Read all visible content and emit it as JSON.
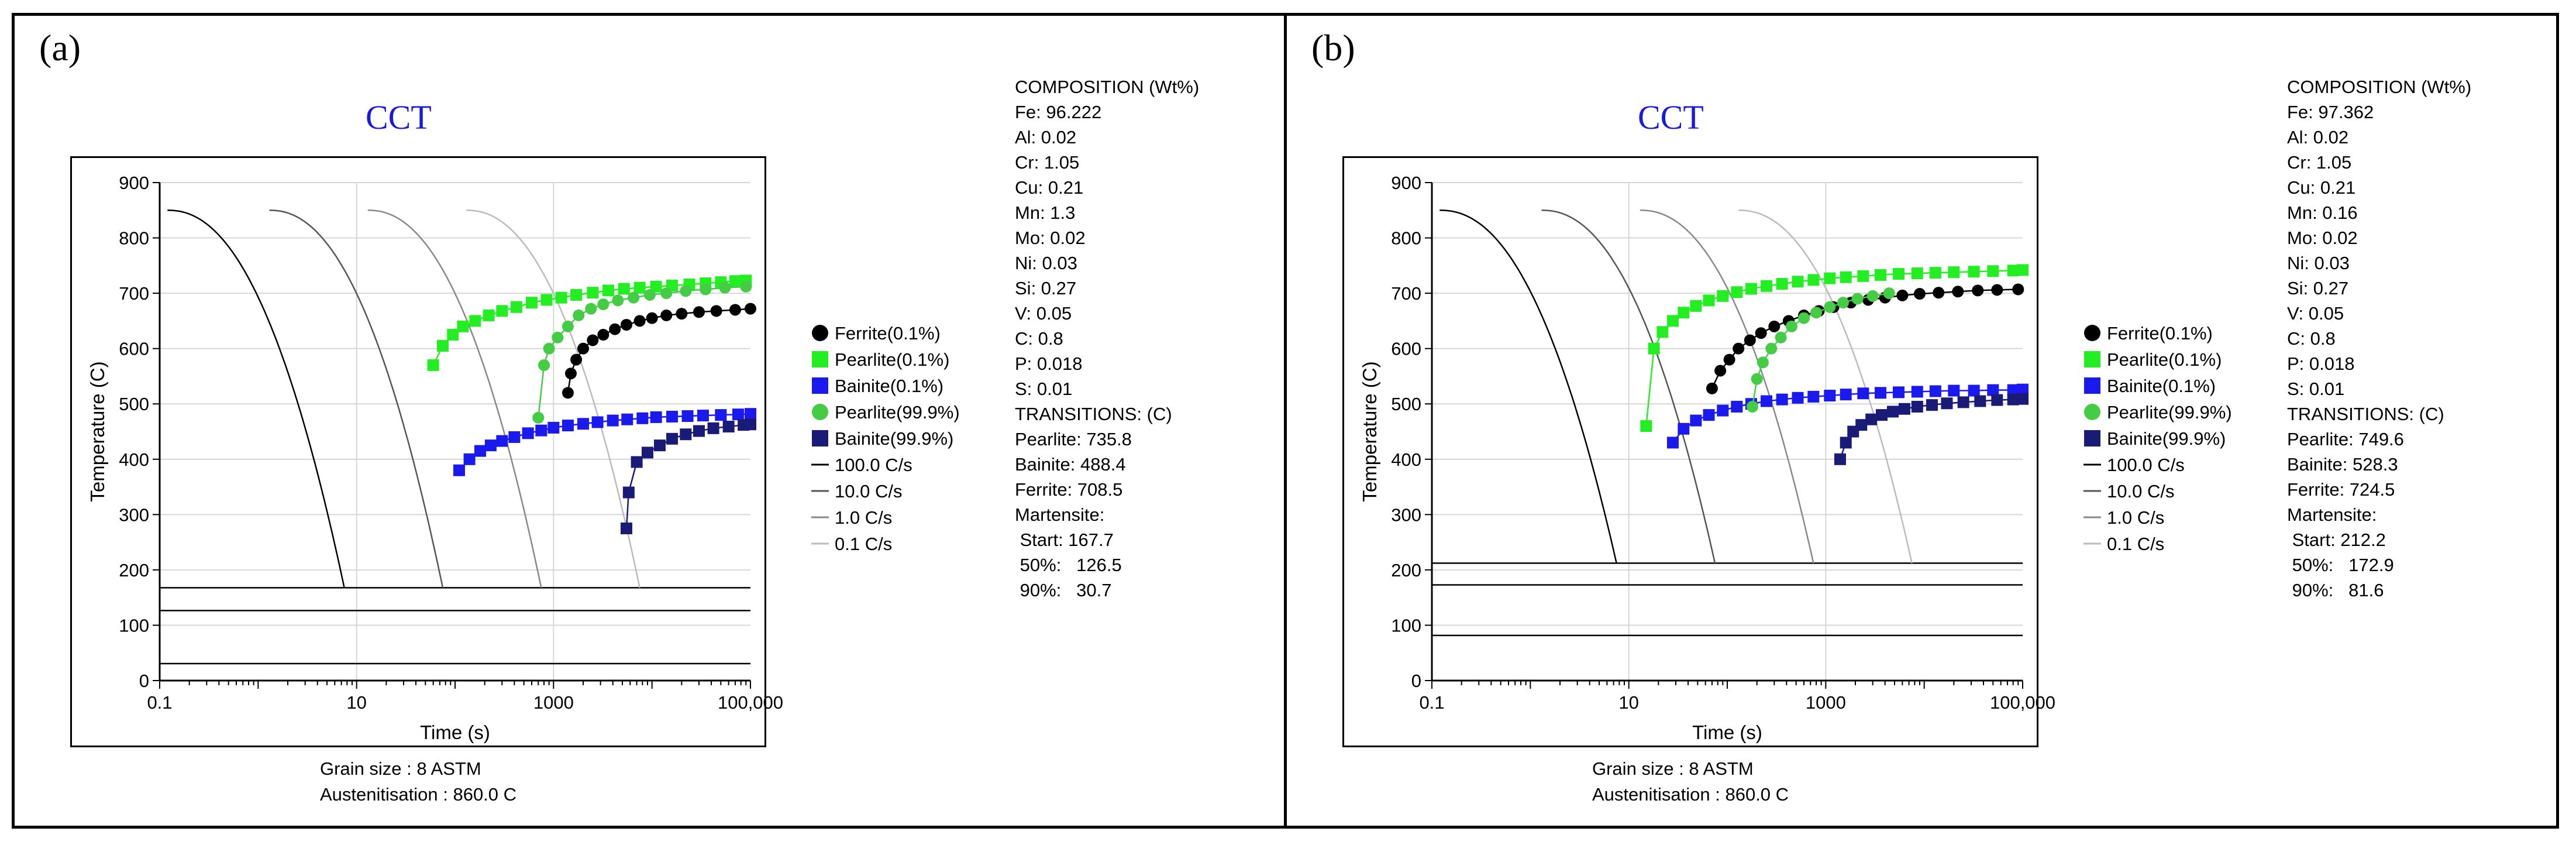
{
  "panels": [
    {
      "label": "(a)",
      "chart_title": "CCT",
      "ylabel": "Temperature (C)",
      "xlabel": "Time (s)",
      "composition": {
        "heading": "COMPOSITION (Wt%)",
        "lines": [
          "Fe: 96.222",
          "Al: 0.02",
          "Cr: 1.05",
          "Cu: 0.21",
          "Mn: 1.3",
          "Mo: 0.02",
          "Ni: 0.03",
          "Si: 0.27",
          "V: 0.05",
          "C: 0.8",
          "P: 0.018",
          "S: 0.01"
        ]
      },
      "transitions": {
        "heading": "TRANSITIONS: (C)",
        "lines": [
          "Pearlite: 735.8",
          "Bainite: 488.4",
          "Ferrite: 708.5",
          "Martensite:",
          " Start: 167.7",
          " 50%:   126.5",
          " 90%:   30.7"
        ]
      },
      "footer": [
        "Grain size : 8 ASTM",
        "Austenitisation : 860.0 C"
      ],
      "chart_data": {
        "type": "line",
        "title": "CCT",
        "xlabel": "Time (s)",
        "ylabel": "Temperature (C)",
        "xscale": "log",
        "xlim": [
          0.1,
          100000
        ],
        "ylim": [
          0,
          900
        ],
        "xticks": [
          "0.1",
          "10",
          "1000",
          "100,000"
        ],
        "yticks": [
          "0",
          "100",
          "200",
          "300",
          "400",
          "500",
          "600",
          "700",
          "800",
          "900"
        ],
        "horizontal_lines": [
          167.7,
          126.5,
          30.7
        ],
        "cooling_curves": [
          {
            "name": "100.0 C/s",
            "t0": 0.12,
            "end": 7.5,
            "color": "#000000"
          },
          {
            "name": "10.0 C/s",
            "t0": 1.3,
            "end": 75,
            "color": "#555555"
          },
          {
            "name": "1.0 C/s",
            "t0": 13,
            "end": 750,
            "color": "#888888"
          },
          {
            "name": "0.1 C/s",
            "t0": 130,
            "end": 7500,
            "color": "#bbbbbb"
          }
        ],
        "series": [
          {
            "name": "Ferrite(0.1%)",
            "marker": "circle",
            "color": "#000000",
            "x": [
              1400,
              1500,
              1700,
              2000,
              2500,
              3200,
              4200,
              5500,
              7500,
              10000,
              14000,
              20000,
              30000,
              45000,
              70000,
              100000
            ],
            "y": [
              520,
              555,
              580,
              600,
              615,
              625,
              635,
              643,
              650,
              655,
              660,
              663,
              666,
              668,
              670,
              672
            ]
          },
          {
            "name": "Pearlite(0.1%)",
            "marker": "square",
            "color": "#22ee22",
            "x": [
              60,
              75,
              95,
              120,
              160,
              220,
              300,
              420,
              600,
              850,
              1200,
              1700,
              2500,
              3600,
              5200,
              7500,
              11000,
              16000,
              24000,
              35000,
              50000,
              70000,
              90000
            ],
            "y": [
              570,
              605,
              625,
              640,
              650,
              660,
              668,
              675,
              683,
              688,
              692,
              697,
              701,
              705,
              708,
              710,
              712,
              714,
              716,
              718,
              720,
              722,
              723
            ]
          },
          {
            "name": "Bainite(0.1%)",
            "marker": "square",
            "color": "#1a1aee",
            "x": [
              110,
              140,
              180,
              230,
              300,
              400,
              550,
              750,
              1000,
              1400,
              2000,
              2800,
              4000,
              5600,
              8000,
              11000,
              16000,
              23000,
              33000,
              50000,
              75000,
              100000
            ],
            "y": [
              380,
              400,
              415,
              425,
              433,
              440,
              447,
              452,
              457,
              461,
              464,
              467,
              470,
              472,
              474,
              476,
              477,
              478,
              479,
              480,
              481,
              482
            ]
          },
          {
            "name": "Pearlite(99.9%)",
            "marker": "circle",
            "color": "#44cc44",
            "x": [
              700,
              800,
              900,
              1100,
              1400,
              1800,
              2400,
              3200,
              4500,
              6500,
              9500,
              14000,
              22000,
              35000,
              55000,
              90000
            ],
            "y": [
              475,
              570,
              600,
              620,
              640,
              660,
              672,
              680,
              687,
              692,
              697,
              700,
              704,
              707,
              710,
              712
            ]
          },
          {
            "name": "Bainite(99.9%)",
            "marker": "square",
            "color": "#1a1a77",
            "x": [
              5500,
              5800,
              7000,
              9000,
              12000,
              16000,
              22000,
              30000,
              42000,
              60000,
              85000,
              100000
            ],
            "y": [
              275,
              340,
              395,
              412,
              425,
              437,
              445,
              451,
              456,
              459,
              462,
              463
            ]
          }
        ]
      }
    },
    {
      "label": "(b)",
      "chart_title": "CCT",
      "ylabel": "Temperature (C)",
      "xlabel": "Time (s)",
      "composition": {
        "heading": "COMPOSITION (Wt%)",
        "lines": [
          "Fe: 97.362",
          "Al: 0.02",
          "Cr: 1.05",
          "Cu: 0.21",
          "Mn: 0.16",
          "Mo: 0.02",
          "Ni: 0.03",
          "Si: 0.27",
          "V: 0.05",
          "C: 0.8",
          "P: 0.018",
          "S: 0.01"
        ]
      },
      "transitions": {
        "heading": "TRANSITIONS: (C)",
        "lines": [
          "Pearlite: 749.6",
          "Bainite: 528.3",
          "Ferrite: 724.5",
          "Martensite:",
          " Start: 212.2",
          " 50%:   172.9",
          " 90%:   81.6"
        ]
      },
      "footer": [
        "Grain size : 8 ASTM",
        "Austenitisation : 860.0 C"
      ],
      "chart_data": {
        "type": "line",
        "title": "CCT",
        "xlabel": "Time (s)",
        "ylabel": "Temperature (C)",
        "xscale": "log",
        "xlim": [
          0.1,
          100000
        ],
        "ylim": [
          0,
          900
        ],
        "xticks": [
          "0.1",
          "10",
          "1000",
          "100,000"
        ],
        "yticks": [
          "0",
          "100",
          "200",
          "300",
          "400",
          "500",
          "600",
          "700",
          "800",
          "900"
        ],
        "horizontal_lines": [
          212.2,
          172.9,
          81.6
        ],
        "cooling_curves": [
          {
            "name": "100.0 C/s",
            "t0": 0.12,
            "end": 7.5,
            "color": "#000000"
          },
          {
            "name": "10.0 C/s",
            "t0": 1.3,
            "end": 75,
            "color": "#555555"
          },
          {
            "name": "1.0 C/s",
            "t0": 13,
            "end": 750,
            "color": "#888888"
          },
          {
            "name": "0.1 C/s",
            "t0": 130,
            "end": 7500,
            "color": "#bbbbbb"
          }
        ],
        "series": [
          {
            "name": "Ferrite(0.1%)",
            "marker": "circle",
            "color": "#000000",
            "x": [
              70,
              85,
              105,
              130,
              170,
              220,
              300,
              420,
              600,
              850,
              1200,
              1800,
              2700,
              4000,
              6000,
              9000,
              14000,
              22000,
              35000,
              55000,
              90000
            ],
            "y": [
              528,
              560,
              580,
              600,
              615,
              628,
              640,
              650,
              660,
              668,
              675,
              683,
              688,
              692,
              696,
              699,
              701,
              703,
              705,
              706,
              707
            ]
          },
          {
            "name": "Pearlite(0.1%)",
            "marker": "square",
            "color": "#22ee22",
            "x": [
              15,
              18,
              22,
              28,
              36,
              48,
              65,
              90,
              125,
              175,
              250,
              360,
              520,
              750,
              1100,
              1600,
              2400,
              3600,
              5500,
              8500,
              13000,
              20000,
              32000,
              50000,
              80000,
              100000
            ],
            "y": [
              460,
              600,
              630,
              650,
              665,
              677,
              687,
              695,
              702,
              708,
              713,
              717,
              721,
              724,
              727,
              729,
              731,
              733,
              735,
              736,
              737,
              738,
              739,
              740,
              741,
              742
            ]
          },
          {
            "name": "Bainite(0.1%)",
            "marker": "square",
            "color": "#1a1aee",
            "x": [
              28,
              36,
              48,
              65,
              90,
              125,
              175,
              250,
              360,
              520,
              750,
              1100,
              1600,
              2400,
              3600,
              5500,
              8500,
              13000,
              20000,
              32000,
              50000,
              80000,
              100000
            ],
            "y": [
              430,
              455,
              470,
              480,
              488,
              495,
              500,
              505,
              508,
              511,
              513,
              515,
              517,
              519,
              520,
              521,
              522,
              523,
              524,
              524,
              525,
              525,
              526
            ]
          },
          {
            "name": "Pearlite(99.9%)",
            "marker": "circle",
            "color": "#44cc44",
            "x": [
              180,
              200,
              230,
              280,
              350,
              450,
              600,
              800,
              1100,
              1500,
              2100,
              3000,
              4400
            ],
            "y": [
              495,
              545,
              575,
              600,
              620,
              640,
              655,
              665,
              675,
              683,
              690,
              695,
              700
            ]
          },
          {
            "name": "Bainite(99.9%)",
            "marker": "square",
            "color": "#1a1a77",
            "x": [
              1400,
              1600,
              1900,
              2300,
              2900,
              3700,
              4800,
              6300,
              8500,
              12000,
              17000,
              25000,
              37000,
              55000,
              80000,
              100000
            ],
            "y": [
              400,
              430,
              450,
              462,
              472,
              480,
              486,
              491,
              495,
              498,
              501,
              503,
              505,
              507,
              508,
              509
            ]
          }
        ]
      }
    }
  ],
  "legend": {
    "markers": [
      {
        "label": "Ferrite(0.1%)",
        "marker": "circle",
        "color": "#000000"
      },
      {
        "label": "Pearlite(0.1%)",
        "marker": "square",
        "color": "#22ee22"
      },
      {
        "label": "Bainite(0.1%)",
        "marker": "square",
        "color": "#1a1aee"
      },
      {
        "label": "Pearlite(99.9%)",
        "marker": "circle",
        "color": "#44cc44"
      },
      {
        "label": "Bainite(99.9%)",
        "marker": "square",
        "color": "#1a1a77"
      }
    ],
    "lines": [
      {
        "label": "100.0 C/s",
        "color": "#000000"
      },
      {
        "label": "10.0 C/s",
        "color": "#555555"
      },
      {
        "label": "1.0 C/s",
        "color": "#888888"
      },
      {
        "label": "0.1 C/s",
        "color": "#bbbbbb"
      }
    ]
  }
}
